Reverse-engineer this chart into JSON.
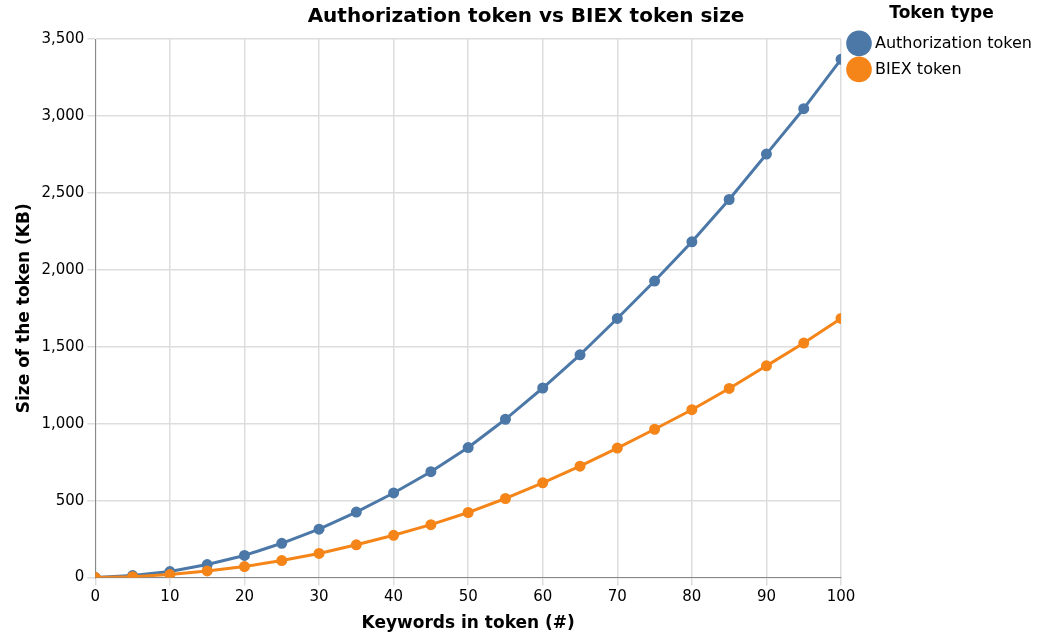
{
  "chart_data": {
    "type": "line",
    "title": "Authorization token vs BIEX token size",
    "xlabel": "Keywords in token (#)",
    "ylabel": "Size of the token (KB)",
    "legend_title": "Token type",
    "x": [
      0,
      5,
      10,
      15,
      20,
      25,
      30,
      35,
      40,
      45,
      50,
      55,
      60,
      65,
      70,
      75,
      80,
      85,
      90,
      95,
      100
    ],
    "series": [
      {
        "name": "Authorization token",
        "color": "#4c78a8",
        "values": [
          0,
          13,
          39,
          85,
          144,
          223,
          315,
          426,
          550,
          688,
          845,
          1029,
          1232,
          1448,
          1684,
          1927,
          2182,
          2457,
          2752,
          3047,
          3368
        ]
      },
      {
        "name": "BIEX token",
        "color": "#f58518",
        "values": [
          0,
          6,
          20,
          43,
          72,
          111,
          157,
          213,
          275,
          344,
          423,
          514,
          616,
          724,
          842,
          964,
          1091,
          1229,
          1376,
          1524,
          1684
        ]
      }
    ],
    "xlim": [
      0,
      100
    ],
    "xticks": [
      0,
      10,
      20,
      30,
      40,
      50,
      60,
      70,
      80,
      90,
      100
    ],
    "ylim": [
      0,
      3500
    ],
    "yticks": [
      0,
      500,
      {
        "value": 1000,
        "label": "1,000"
      },
      {
        "value": 1500,
        "label": "1,500"
      },
      {
        "value": 2000,
        "label": "2,000"
      },
      {
        "value": 2500,
        "label": "2,500"
      },
      {
        "value": 3000,
        "label": "3,000"
      },
      {
        "value": 3500,
        "label": "3,500"
      }
    ],
    "grid": true,
    "legend": "top right",
    "marker": "circle",
    "line_style": "solid"
  }
}
